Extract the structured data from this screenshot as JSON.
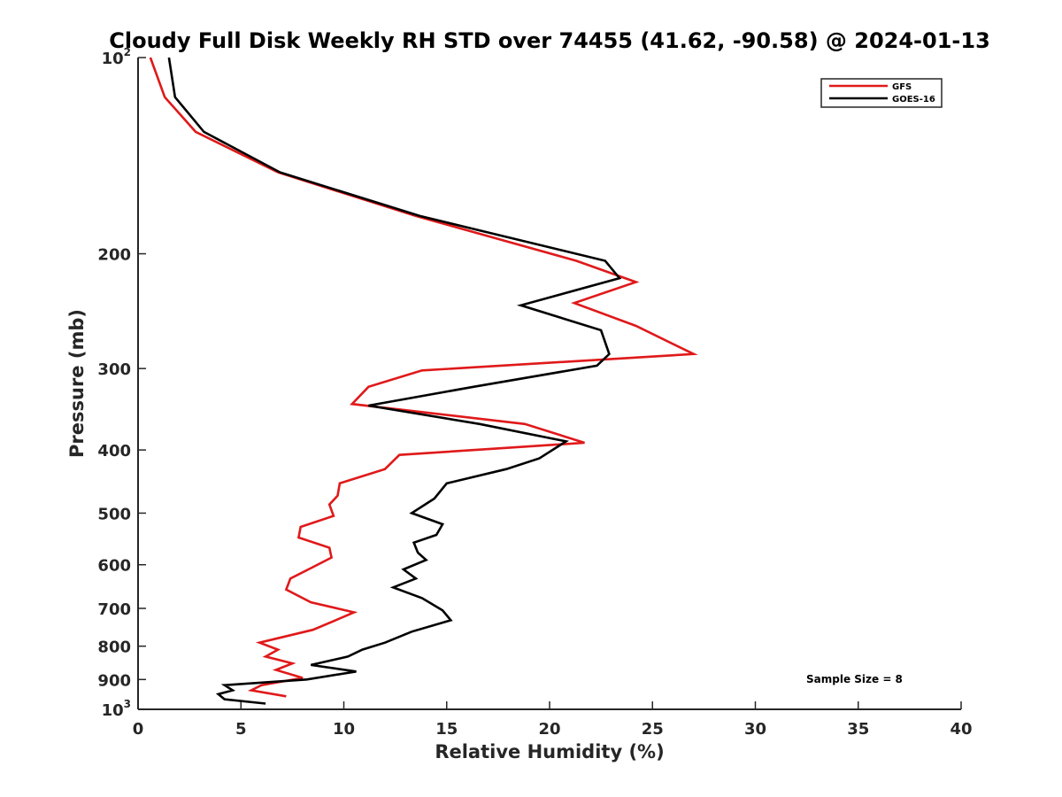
{
  "chart_data": {
    "type": "line",
    "title": "Cloudy Full Disk Weekly RH STD over 74455 (41.62, -90.58) @ 2024-01-13",
    "xlabel": "Relative Humidity (%)",
    "ylabel": "Pressure (mb)",
    "xlim": [
      0,
      40
    ],
    "ylim": [
      100,
      1000
    ],
    "yscale": "log",
    "y_reversed": true,
    "grid": false,
    "legend_position": "top-right",
    "annotation": "Sample Size = 8",
    "x_ticks": [
      "0",
      "5",
      "10",
      "15",
      "20",
      "25",
      "30",
      "35",
      "40"
    ],
    "y_ticks": [
      {
        "value": 100,
        "base": "10",
        "exp": "2"
      },
      {
        "value": 200,
        "label": "200"
      },
      {
        "value": 300,
        "label": "300"
      },
      {
        "value": 400,
        "label": "400"
      },
      {
        "value": 500,
        "label": "500"
      },
      {
        "value": 600,
        "label": "600"
      },
      {
        "value": 700,
        "label": "700"
      },
      {
        "value": 800,
        "label": "800"
      },
      {
        "value": 900,
        "label": "900"
      },
      {
        "value": 1000,
        "base": "10",
        "exp": "3"
      }
    ],
    "series": [
      {
        "name": "GFS",
        "color": "#e0191a",
        "points": [
          [
            0.6,
            100
          ],
          [
            1.3,
            115
          ],
          [
            2.8,
            130
          ],
          [
            6.8,
            150
          ],
          [
            13.5,
            175
          ],
          [
            21.3,
            205
          ],
          [
            24.2,
            221
          ],
          [
            21.2,
            238
          ],
          [
            24.2,
            258
          ],
          [
            27.0,
            285
          ],
          [
            13.8,
            302
          ],
          [
            11.2,
            320
          ],
          [
            10.4,
            340
          ],
          [
            18.8,
            365
          ],
          [
            21.7,
            390
          ],
          [
            12.7,
            407
          ],
          [
            12.0,
            428
          ],
          [
            9.8,
            450
          ],
          [
            9.7,
            470
          ],
          [
            9.3,
            485
          ],
          [
            9.5,
            505
          ],
          [
            7.9,
            525
          ],
          [
            7.8,
            545
          ],
          [
            9.3,
            565
          ],
          [
            9.4,
            585
          ],
          [
            8.5,
            605
          ],
          [
            7.4,
            630
          ],
          [
            7.2,
            655
          ],
          [
            8.4,
            685
          ],
          [
            10.5,
            710
          ],
          [
            9.6,
            730
          ],
          [
            8.5,
            755
          ],
          [
            5.9,
            790
          ],
          [
            6.8,
            810
          ],
          [
            6.2,
            830
          ],
          [
            7.5,
            850
          ],
          [
            6.7,
            870
          ],
          [
            8.0,
            895
          ],
          [
            6.0,
            918
          ],
          [
            5.5,
            935
          ],
          [
            7.2,
            955
          ]
        ]
      },
      {
        "name": "GOES-16",
        "color": "#000000",
        "points": [
          [
            1.5,
            100
          ],
          [
            1.8,
            115
          ],
          [
            3.2,
            130
          ],
          [
            6.9,
            150
          ],
          [
            13.7,
            175
          ],
          [
            22.7,
            205
          ],
          [
            23.4,
            218
          ],
          [
            18.6,
            240
          ],
          [
            22.5,
            262
          ],
          [
            22.9,
            285
          ],
          [
            22.3,
            297
          ],
          [
            16.3,
            320
          ],
          [
            11.2,
            342
          ],
          [
            16.6,
            365
          ],
          [
            20.8,
            388
          ],
          [
            19.5,
            412
          ],
          [
            17.9,
            428
          ],
          [
            15.0,
            450
          ],
          [
            14.4,
            475
          ],
          [
            13.3,
            500
          ],
          [
            14.8,
            520
          ],
          [
            14.5,
            540
          ],
          [
            13.4,
            555
          ],
          [
            13.6,
            575
          ],
          [
            14.0,
            590
          ],
          [
            12.9,
            610
          ],
          [
            13.5,
            630
          ],
          [
            12.4,
            650
          ],
          [
            13.8,
            675
          ],
          [
            14.8,
            705
          ],
          [
            15.2,
            730
          ],
          [
            13.3,
            760
          ],
          [
            12.0,
            790
          ],
          [
            10.9,
            810
          ],
          [
            10.2,
            830
          ],
          [
            8.4,
            855
          ],
          [
            10.6,
            875
          ],
          [
            8.2,
            900
          ],
          [
            4.2,
            918
          ],
          [
            4.6,
            935
          ],
          [
            3.9,
            948
          ],
          [
            4.2,
            965
          ],
          [
            6.2,
            980
          ]
        ]
      }
    ]
  }
}
